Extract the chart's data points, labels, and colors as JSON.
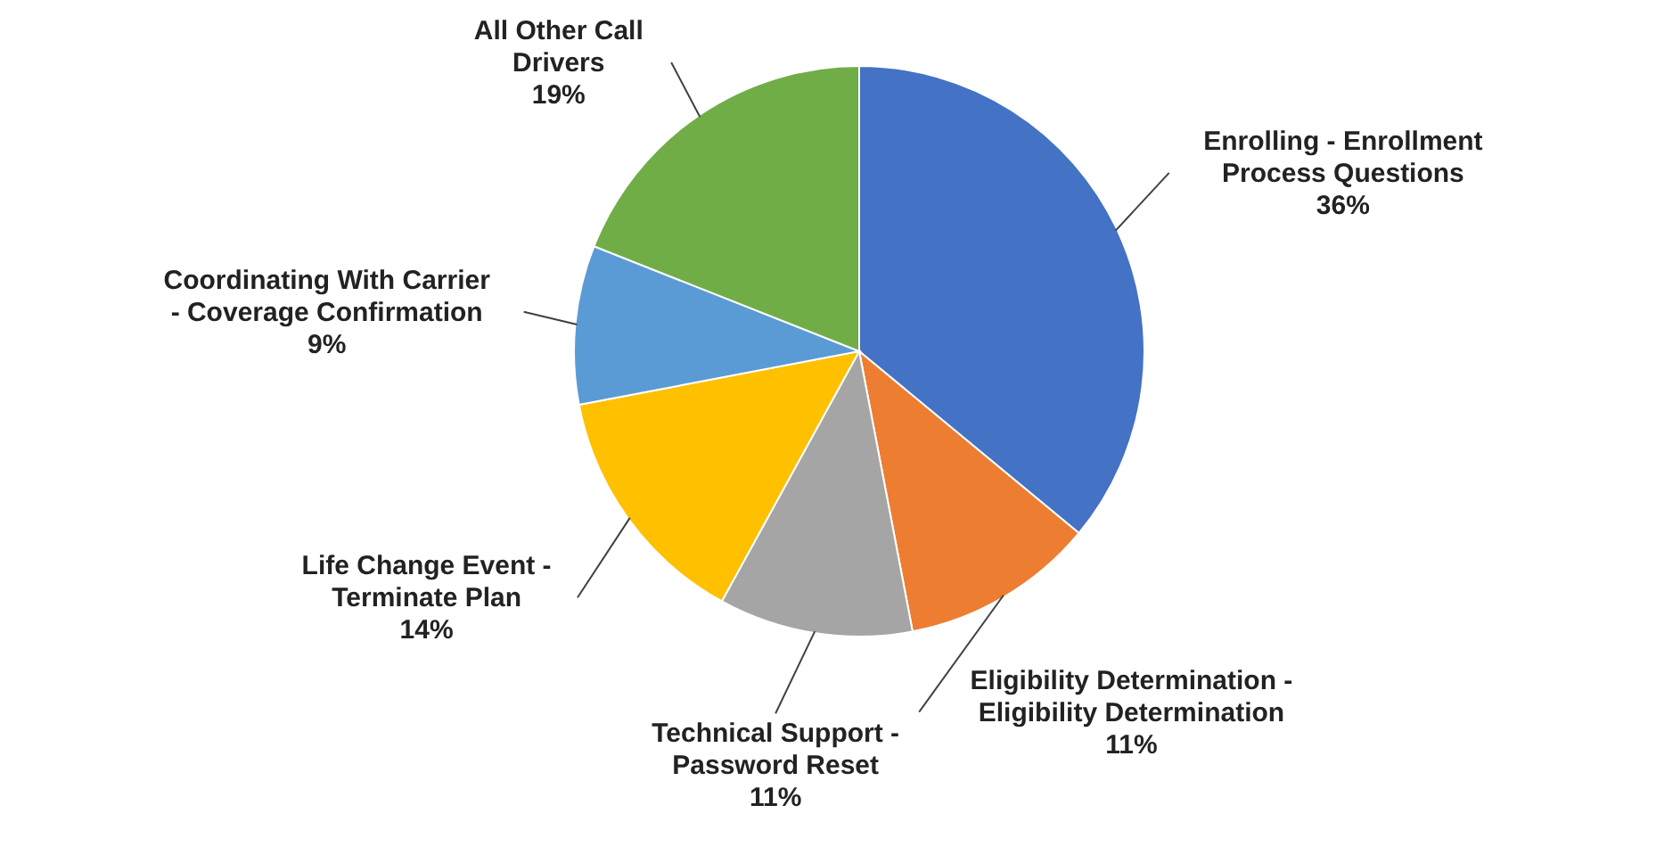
{
  "chart_data": {
    "type": "pie",
    "categories": [
      "Enrolling - Enrollment\nProcess Questions",
      "Eligibility Determination -\nEligibility Determination",
      "Technical Support -\nPassword Reset",
      "Life Change Event -\nTerminate Plan",
      "Coordinating With Carrier\n- Coverage Confirmation",
      "All Other Call\nDrivers"
    ],
    "values": [
      36,
      11,
      11,
      14,
      9,
      19
    ],
    "value_labels": [
      "36%",
      "11%",
      "11%",
      "14%",
      "9%",
      "19%"
    ],
    "colors": [
      "#4472c4",
      "#ed7d31",
      "#a5a5a5",
      "#ffc000",
      "#5b9bd5",
      "#70ad47"
    ]
  }
}
